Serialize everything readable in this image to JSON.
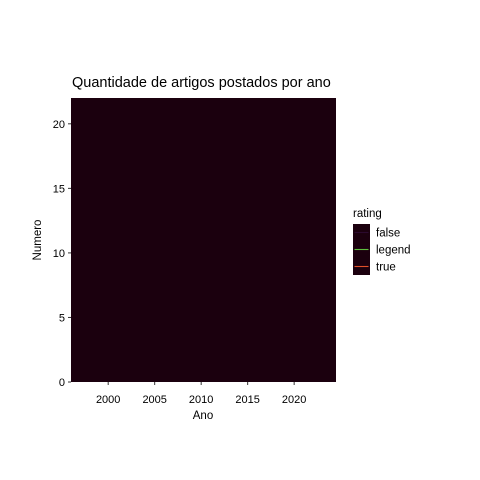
{
  "chart_data": {
    "type": "line",
    "title": "Quantidade de artigos postados por ano",
    "xlabel": "Ano",
    "ylabel": "Numero",
    "xlim": [
      1996,
      2024.5
    ],
    "ylim": [
      0,
      22
    ],
    "x_ticks": [
      2000,
      2005,
      2010,
      2015,
      2020
    ],
    "y_ticks": [
      0,
      5,
      10,
      15,
      20
    ],
    "x_tick_labels": [
      "2000",
      "2005",
      "2010",
      "2015",
      "2020"
    ],
    "y_tick_labels": [
      "0",
      "5",
      "10",
      "15",
      "20"
    ],
    "grid": false,
    "panel_background": "#1b000e",
    "legend": {
      "title": "rating",
      "placement": "right",
      "entries": [
        {
          "name": "false",
          "color": "#2b0a2e"
        },
        {
          "name": "legend",
          "color": "#5fbf3f"
        },
        {
          "name": "true",
          "color": "#e0502a"
        }
      ]
    },
    "series": []
  }
}
